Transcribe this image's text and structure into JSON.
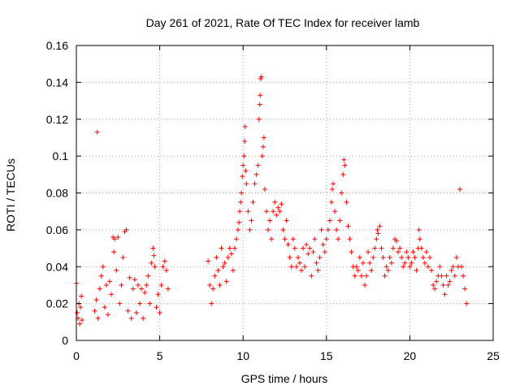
{
  "chart_data": {
    "type": "scatter",
    "title": "Day 261 of 2021, Rate Of TEC Index for receiver lamb",
    "xlabel": "GPS time / hours",
    "ylabel": "ROTI / TECUs",
    "xlim": [
      0,
      25
    ],
    "ylim": [
      0,
      0.16
    ],
    "xticks": [
      0,
      5,
      10,
      15,
      20,
      25
    ],
    "yticks": [
      0,
      0.02,
      0.04,
      0.06,
      0.08,
      0.1,
      0.12,
      0.14,
      0.16
    ],
    "xtick_labels": [
      "0",
      "5",
      "10",
      "15",
      "20",
      "25"
    ],
    "ytick_labels": [
      "0",
      "0.02",
      "0.04",
      "0.06",
      "0.08",
      "0.1",
      "0.12",
      "0.14",
      "0.16"
    ],
    "grid": true,
    "marker": "+",
    "color": "#ff0000",
    "series": [
      {
        "points": [
          [
            0.0,
            0.031
          ],
          [
            0.05,
            0.015
          ],
          [
            0.1,
            0.012
          ],
          [
            0.15,
            0.02
          ],
          [
            0.2,
            0.009
          ],
          [
            0.25,
            0.018
          ],
          [
            0.3,
            0.024
          ],
          [
            0.35,
            0.011
          ],
          [
            1.1,
            0.016
          ],
          [
            1.2,
            0.022
          ],
          [
            1.25,
            0.113
          ],
          [
            1.3,
            0.012
          ],
          [
            1.4,
            0.028
          ],
          [
            1.5,
            0.035
          ],
          [
            1.6,
            0.04
          ],
          [
            1.7,
            0.018
          ],
          [
            1.8,
            0.03
          ],
          [
            1.9,
            0.014
          ],
          [
            2.0,
            0.032
          ],
          [
            2.1,
            0.025
          ],
          [
            2.2,
            0.056
          ],
          [
            2.25,
            0.048
          ],
          [
            2.3,
            0.055
          ],
          [
            2.4,
            0.038
          ],
          [
            2.5,
            0.056
          ],
          [
            2.6,
            0.02
          ],
          [
            2.7,
            0.03
          ],
          [
            2.8,
            0.045
          ],
          [
            2.9,
            0.059
          ],
          [
            3.0,
            0.06
          ],
          [
            3.1,
            0.016
          ],
          [
            3.2,
            0.034
          ],
          [
            3.3,
            0.012
          ],
          [
            3.4,
            0.028
          ],
          [
            3.5,
            0.033
          ],
          [
            3.6,
            0.015
          ],
          [
            3.7,
            0.03
          ],
          [
            3.8,
            0.02
          ],
          [
            3.9,
            0.028
          ],
          [
            4.0,
            0.012
          ],
          [
            4.1,
            0.026
          ],
          [
            4.2,
            0.03
          ],
          [
            4.3,
            0.035
          ],
          [
            4.4,
            0.02
          ],
          [
            4.5,
            0.042
          ],
          [
            4.6,
            0.05
          ],
          [
            4.65,
            0.046
          ],
          [
            4.7,
            0.04
          ],
          [
            4.8,
            0.018
          ],
          [
            4.9,
            0.025
          ],
          [
            5.0,
            0.015
          ],
          [
            5.1,
            0.03
          ],
          [
            5.2,
            0.04
          ],
          [
            5.3,
            0.043
          ],
          [
            5.4,
            0.038
          ],
          [
            5.5,
            0.028
          ],
          [
            7.9,
            0.043
          ],
          [
            8.0,
            0.03
          ],
          [
            8.1,
            0.02
          ],
          [
            8.2,
            0.028
          ],
          [
            8.3,
            0.035
          ],
          [
            8.4,
            0.045
          ],
          [
            8.5,
            0.038
          ],
          [
            8.6,
            0.03
          ],
          [
            8.7,
            0.05
          ],
          [
            8.8,
            0.04
          ],
          [
            8.9,
            0.042
          ],
          [
            9.0,
            0.032
          ],
          [
            9.1,
            0.045
          ],
          [
            9.2,
            0.05
          ],
          [
            9.3,
            0.047
          ],
          [
            9.4,
            0.038
          ],
          [
            9.5,
            0.05
          ],
          [
            9.6,
            0.055
          ],
          [
            9.7,
            0.06
          ],
          [
            9.75,
            0.064
          ],
          [
            9.8,
            0.07
          ],
          [
            9.85,
            0.075
          ],
          [
            9.9,
            0.08
          ],
          [
            9.95,
            0.089
          ],
          [
            10.0,
            0.095
          ],
          [
            10.05,
            0.1
          ],
          [
            10.1,
            0.108
          ],
          [
            10.12,
            0.116
          ],
          [
            10.15,
            0.092
          ],
          [
            10.2,
            0.085
          ],
          [
            10.3,
            0.07
          ],
          [
            10.4,
            0.06
          ],
          [
            10.5,
            0.065
          ],
          [
            10.6,
            0.075
          ],
          [
            10.7,
            0.085
          ],
          [
            10.8,
            0.09
          ],
          [
            10.9,
            0.095
          ],
          [
            10.95,
            0.12
          ],
          [
            11.0,
            0.128
          ],
          [
            11.02,
            0.133
          ],
          [
            11.05,
            0.142
          ],
          [
            11.1,
            0.143
          ],
          [
            11.15,
            0.1
          ],
          [
            11.2,
            0.105
          ],
          [
            11.25,
            0.11
          ],
          [
            11.3,
            0.082
          ],
          [
            11.4,
            0.07
          ],
          [
            11.5,
            0.06
          ],
          [
            11.6,
            0.065
          ],
          [
            11.7,
            0.055
          ],
          [
            11.8,
            0.07
          ],
          [
            11.9,
            0.075
          ],
          [
            12.0,
            0.068
          ],
          [
            12.1,
            0.072
          ],
          [
            12.2,
            0.07
          ],
          [
            12.3,
            0.074
          ],
          [
            12.4,
            0.06
          ],
          [
            12.5,
            0.055
          ],
          [
            12.6,
            0.065
          ],
          [
            12.7,
            0.052
          ],
          [
            12.8,
            0.045
          ],
          [
            12.9,
            0.04
          ],
          [
            13.0,
            0.055
          ],
          [
            13.1,
            0.05
          ],
          [
            13.2,
            0.04
          ],
          [
            13.3,
            0.045
          ],
          [
            13.4,
            0.042
          ],
          [
            13.5,
            0.038
          ],
          [
            13.6,
            0.05
          ],
          [
            13.7,
            0.04
          ],
          [
            13.8,
            0.052
          ],
          [
            13.9,
            0.047
          ],
          [
            14.0,
            0.05
          ],
          [
            14.1,
            0.035
          ],
          [
            14.2,
            0.048
          ],
          [
            14.3,
            0.055
          ],
          [
            14.4,
            0.042
          ],
          [
            14.5,
            0.038
          ],
          [
            14.6,
            0.045
          ],
          [
            14.7,
            0.06
          ],
          [
            14.8,
            0.052
          ],
          [
            14.9,
            0.048
          ],
          [
            15.0,
            0.055
          ],
          [
            15.1,
            0.06
          ],
          [
            15.2,
            0.065
          ],
          [
            15.3,
            0.075
          ],
          [
            15.35,
            0.082
          ],
          [
            15.4,
            0.085
          ],
          [
            15.5,
            0.07
          ],
          [
            15.6,
            0.06
          ],
          [
            15.7,
            0.055
          ],
          [
            15.8,
            0.065
          ],
          [
            15.9,
            0.08
          ],
          [
            16.0,
            0.09
          ],
          [
            16.05,
            0.098
          ],
          [
            16.1,
            0.095
          ],
          [
            16.2,
            0.075
          ],
          [
            16.3,
            0.062
          ],
          [
            16.4,
            0.055
          ],
          [
            16.5,
            0.048
          ],
          [
            16.6,
            0.04
          ],
          [
            16.7,
            0.035
          ],
          [
            16.8,
            0.04
          ],
          [
            16.9,
            0.038
          ],
          [
            17.0,
            0.045
          ],
          [
            17.1,
            0.035
          ],
          [
            17.2,
            0.042
          ],
          [
            17.3,
            0.03
          ],
          [
            17.4,
            0.035
          ],
          [
            17.5,
            0.048
          ],
          [
            17.6,
            0.042
          ],
          [
            17.7,
            0.038
          ],
          [
            17.8,
            0.045
          ],
          [
            17.9,
            0.05
          ],
          [
            18.0,
            0.055
          ],
          [
            18.05,
            0.06
          ],
          [
            18.1,
            0.058
          ],
          [
            18.2,
            0.062
          ],
          [
            18.3,
            0.05
          ],
          [
            18.4,
            0.045
          ],
          [
            18.5,
            0.035
          ],
          [
            18.6,
            0.04
          ],
          [
            18.7,
            0.038
          ],
          [
            18.8,
            0.045
          ],
          [
            18.9,
            0.042
          ],
          [
            19.0,
            0.05
          ],
          [
            19.1,
            0.055
          ],
          [
            19.2,
            0.054
          ],
          [
            19.3,
            0.048
          ],
          [
            19.4,
            0.05
          ],
          [
            19.5,
            0.045
          ],
          [
            19.6,
            0.04
          ],
          [
            19.7,
            0.042
          ],
          [
            19.8,
            0.048
          ],
          [
            19.9,
            0.045
          ],
          [
            20.0,
            0.04
          ],
          [
            20.1,
            0.042
          ],
          [
            20.2,
            0.048
          ],
          [
            20.3,
            0.045
          ],
          [
            20.4,
            0.038
          ],
          [
            20.5,
            0.05
          ],
          [
            20.55,
            0.06
          ],
          [
            20.6,
            0.055
          ],
          [
            20.7,
            0.05
          ],
          [
            20.8,
            0.045
          ],
          [
            20.9,
            0.042
          ],
          [
            21.0,
            0.048
          ],
          [
            21.1,
            0.04
          ],
          [
            21.2,
            0.045
          ],
          [
            21.3,
            0.038
          ],
          [
            21.4,
            0.03
          ],
          [
            21.5,
            0.028
          ],
          [
            21.6,
            0.032
          ],
          [
            21.7,
            0.035
          ],
          [
            21.8,
            0.04
          ],
          [
            21.9,
            0.035
          ],
          [
            22.0,
            0.03
          ],
          [
            22.1,
            0.025
          ],
          [
            22.2,
            0.035
          ],
          [
            22.3,
            0.03
          ],
          [
            22.4,
            0.032
          ],
          [
            22.5,
            0.038
          ],
          [
            22.6,
            0.04
          ],
          [
            22.7,
            0.035
          ],
          [
            22.8,
            0.045
          ],
          [
            22.9,
            0.04
          ],
          [
            23.0,
            0.082
          ],
          [
            23.1,
            0.04
          ],
          [
            23.2,
            0.035
          ],
          [
            23.3,
            0.028
          ],
          [
            23.4,
            0.02
          ]
        ]
      }
    ]
  }
}
